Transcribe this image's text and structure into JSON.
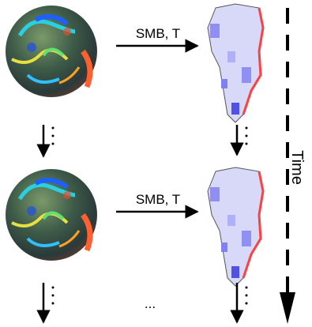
{
  "edges": [
    {
      "label": "SMB, T"
    },
    {
      "label": "SMB, T"
    }
  ],
  "axis": {
    "label": "Time"
  },
  "continuation": "..."
}
